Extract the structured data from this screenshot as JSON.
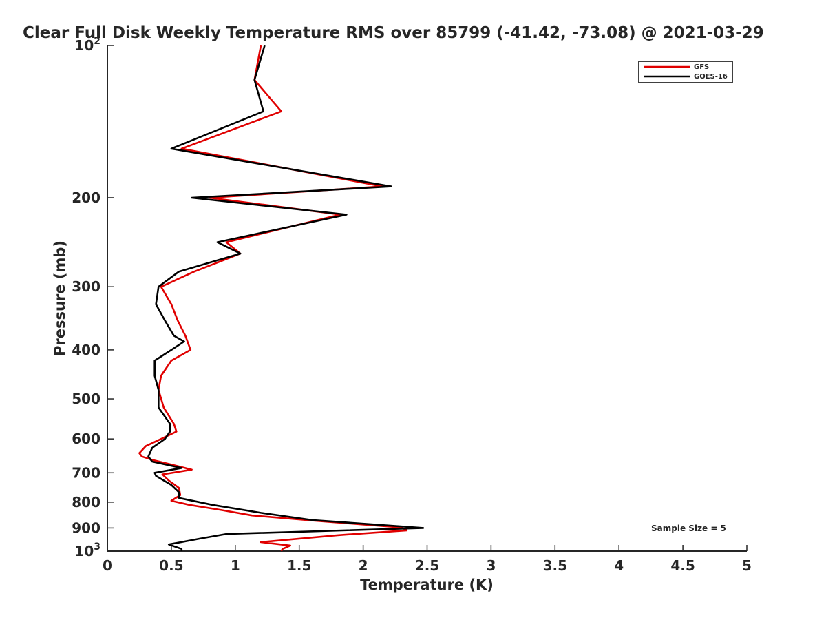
{
  "chart_data": {
    "type": "line",
    "title": "Clear Full Disk Weekly Temperature RMS over 85799 (-41.42, -73.08) @ 2021-03-29",
    "xlabel": "Temperature (K)",
    "ylabel": "Pressure (mb)",
    "xlim": [
      0,
      5
    ],
    "ylim": [
      100,
      1000
    ],
    "y_scale": "log",
    "y_reversed": true,
    "grid": false,
    "legend_position": "top-right",
    "x_ticks": [
      "0",
      "0.5",
      "1",
      "1.5",
      "2",
      "2.5",
      "3",
      "3.5",
      "4",
      "4.5",
      "5"
    ],
    "y_ticks": [
      {
        "value": 100,
        "base": "10",
        "exp": "2"
      },
      {
        "value": 200,
        "label": "200"
      },
      {
        "value": 300,
        "label": "300"
      },
      {
        "value": 400,
        "label": "400"
      },
      {
        "value": 500,
        "label": "500"
      },
      {
        "value": 600,
        "label": "600"
      },
      {
        "value": 700,
        "label": "700"
      },
      {
        "value": 800,
        "label": "800"
      },
      {
        "value": 900,
        "label": "900"
      },
      {
        "value": 1000,
        "base": "10",
        "exp": "3"
      }
    ],
    "annotation": "Sample Size = 5",
    "series": [
      {
        "name": "GFS",
        "color": "#e00000",
        "points": [
          [
            1.2,
            100
          ],
          [
            1.15,
            117
          ],
          [
            1.36,
            135
          ],
          [
            0.58,
            160
          ],
          [
            2.15,
            190
          ],
          [
            0.8,
            200
          ],
          [
            1.82,
            216
          ],
          [
            0.93,
            245
          ],
          [
            1.04,
            258
          ],
          [
            0.68,
            280
          ],
          [
            0.42,
            300
          ],
          [
            0.5,
            325
          ],
          [
            0.55,
            350
          ],
          [
            0.61,
            375
          ],
          [
            0.65,
            400
          ],
          [
            0.5,
            420
          ],
          [
            0.42,
            450
          ],
          [
            0.4,
            480
          ],
          [
            0.44,
            520
          ],
          [
            0.52,
            560
          ],
          [
            0.54,
            580
          ],
          [
            0.42,
            600
          ],
          [
            0.3,
            620
          ],
          [
            0.25,
            640
          ],
          [
            0.27,
            650
          ],
          [
            0.35,
            660
          ],
          [
            0.66,
            690
          ],
          [
            0.43,
            705
          ],
          [
            0.48,
            725
          ],
          [
            0.56,
            750
          ],
          [
            0.57,
            775
          ],
          [
            0.5,
            795
          ],
          [
            0.64,
            810
          ],
          [
            0.9,
            830
          ],
          [
            1.13,
            850
          ],
          [
            1.6,
            870
          ],
          [
            2.3,
            898
          ],
          [
            2.34,
            910
          ],
          [
            1.8,
            930
          ],
          [
            1.2,
            960
          ],
          [
            1.43,
            975
          ],
          [
            1.37,
            990
          ],
          [
            1.36,
            1000
          ]
        ]
      },
      {
        "name": "GOES-16",
        "color": "#000000",
        "points": [
          [
            1.23,
            100
          ],
          [
            1.15,
            117
          ],
          [
            1.22,
            135
          ],
          [
            0.5,
            160
          ],
          [
            2.22,
            190
          ],
          [
            0.66,
            200
          ],
          [
            1.87,
            216
          ],
          [
            0.86,
            245
          ],
          [
            1.04,
            258
          ],
          [
            0.56,
            280
          ],
          [
            0.4,
            300
          ],
          [
            0.38,
            325
          ],
          [
            0.45,
            350
          ],
          [
            0.52,
            375
          ],
          [
            0.6,
            385
          ],
          [
            0.5,
            400
          ],
          [
            0.37,
            420
          ],
          [
            0.37,
            450
          ],
          [
            0.4,
            480
          ],
          [
            0.4,
            520
          ],
          [
            0.49,
            560
          ],
          [
            0.49,
            580
          ],
          [
            0.45,
            600
          ],
          [
            0.35,
            625
          ],
          [
            0.32,
            650
          ],
          [
            0.35,
            665
          ],
          [
            0.58,
            685
          ],
          [
            0.37,
            700
          ],
          [
            0.38,
            710
          ],
          [
            0.5,
            740
          ],
          [
            0.56,
            765
          ],
          [
            0.56,
            785
          ],
          [
            0.82,
            810
          ],
          [
            1.2,
            840
          ],
          [
            1.6,
            868
          ],
          [
            2.47,
            900
          ],
          [
            0.93,
            925
          ],
          [
            0.72,
            945
          ],
          [
            0.48,
            970
          ],
          [
            0.58,
            990
          ],
          [
            0.58,
            1000
          ]
        ]
      }
    ]
  }
}
